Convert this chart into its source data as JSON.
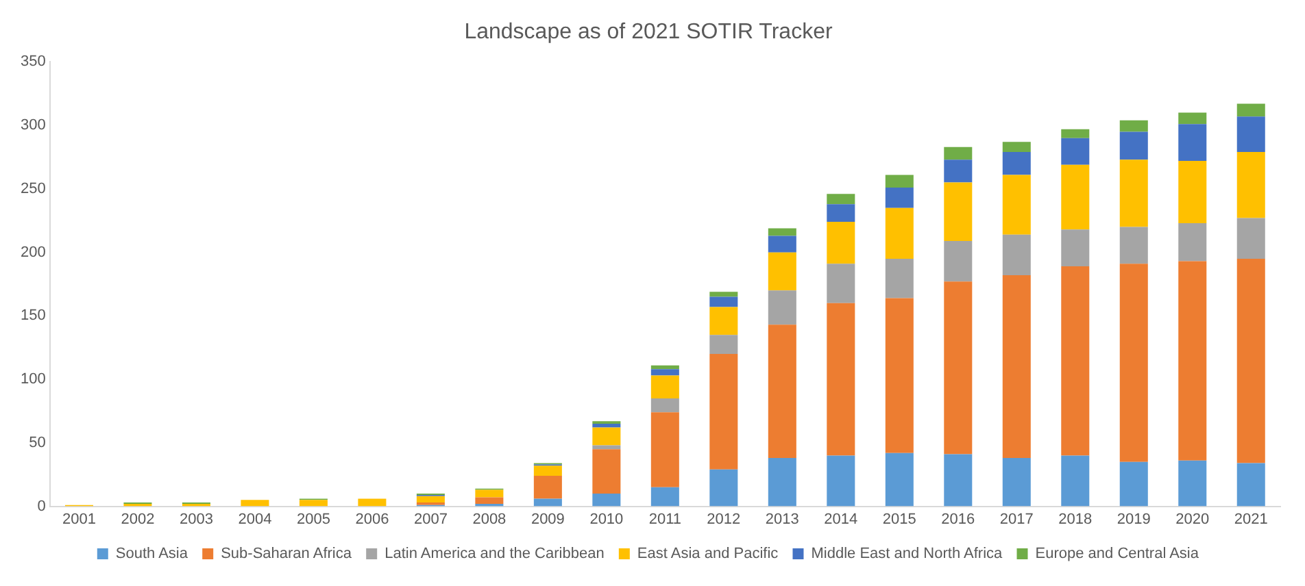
{
  "chart_data": {
    "type": "bar",
    "title": "Landscape as of 2021 SOTIR Tracker",
    "stacked": true,
    "legend": "bottom",
    "grid": false,
    "categories": [
      "2001",
      "2002",
      "2003",
      "2004",
      "2005",
      "2006",
      "2007",
      "2008",
      "2009",
      "2010",
      "2011",
      "2012",
      "2013",
      "2014",
      "2015",
      "2016",
      "2017",
      "2018",
      "2019",
      "2020",
      "2021"
    ],
    "ylim": [
      0,
      350
    ],
    "yticks": [
      0,
      50,
      100,
      150,
      200,
      250,
      300,
      350
    ],
    "series": [
      {
        "name": "South Asia",
        "color": "#5b9bd5",
        "values": [
          0,
          0,
          0,
          0,
          0,
          0,
          1,
          2,
          6,
          10,
          15,
          29,
          38,
          40,
          42,
          41,
          38,
          40,
          35,
          36,
          34
        ]
      },
      {
        "name": "Sub-Saharan Africa",
        "color": "#ed7d31",
        "values": [
          0,
          0,
          0,
          0,
          0,
          0,
          2,
          5,
          18,
          35,
          59,
          91,
          105,
          120,
          122,
          136,
          144,
          149,
          156,
          157,
          161
        ]
      },
      {
        "name": "Latin America and the Caribbean",
        "color": "#a5a5a5",
        "values": [
          0,
          0,
          0,
          0,
          0,
          null,
          null,
          null,
          null,
          3,
          11,
          15,
          27,
          31,
          31,
          32,
          32,
          29,
          29,
          30,
          32
        ]
      },
      {
        "name": "East Asia and Pacific",
        "color": "#ffc000",
        "values": [
          1,
          2,
          2,
          5,
          5,
          6,
          5,
          6,
          8,
          14,
          18,
          22,
          30,
          33,
          40,
          46,
          47,
          51,
          53,
          49,
          52
        ]
      },
      {
        "name": "Middle East and North Africa",
        "color": "#4472c4",
        "values": [
          0,
          0,
          0,
          0,
          0,
          0,
          1,
          0,
          1,
          3,
          5,
          8,
          13,
          14,
          16,
          18,
          18,
          21,
          22,
          29,
          28
        ]
      },
      {
        "name": "Europe and Central Asia",
        "color": "#70ad47",
        "values": [
          0,
          1,
          1,
          0,
          1,
          0,
          1,
          1,
          1,
          2,
          3,
          4,
          6,
          8,
          10,
          10,
          8,
          7,
          9,
          9,
          10
        ]
      }
    ]
  }
}
